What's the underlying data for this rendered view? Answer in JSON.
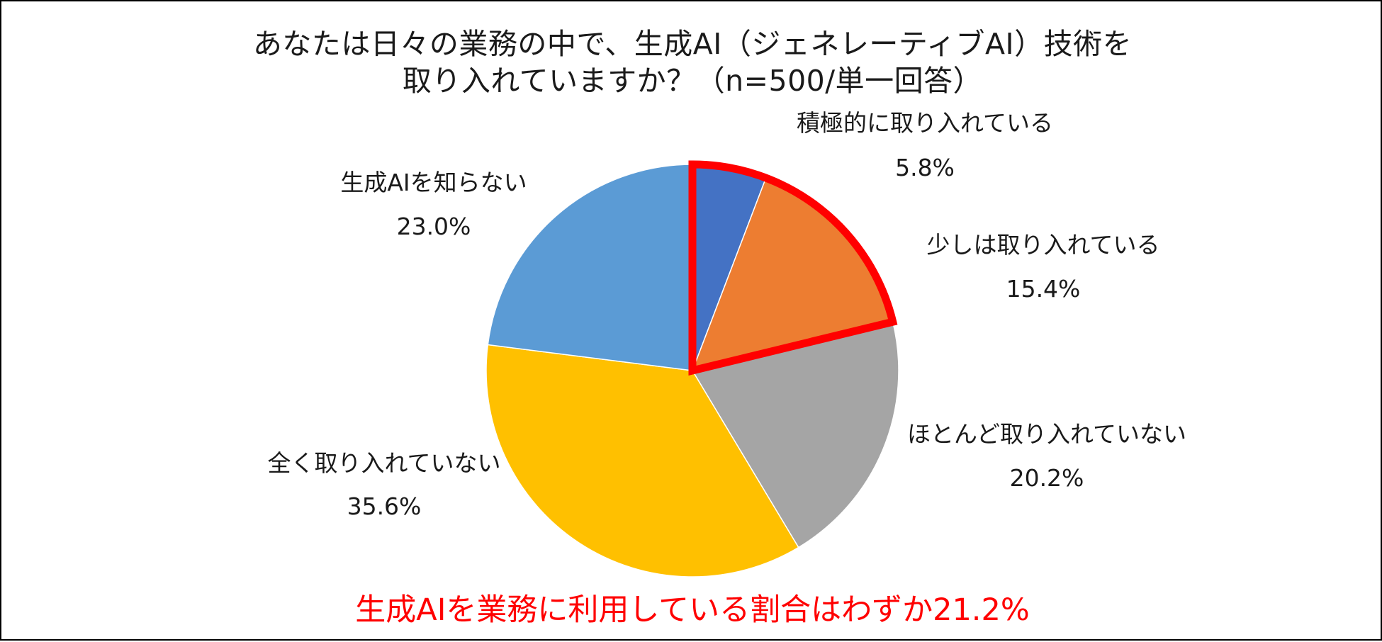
{
  "chart_data": {
    "type": "pie",
    "title_lines": [
      "あなたは日々の業務の中で、生成AI（ジェネレーティブAI）技術を",
      "取り入れていますか？（n=500/単一回答）"
    ],
    "value_format": "percent",
    "slices": [
      {
        "label": "積極的に取り入れている",
        "value": 5.8,
        "value_label": "5.8%",
        "color": "#4472C4"
      },
      {
        "label": "少しは取り入れている",
        "value": 15.4,
        "value_label": "15.4%",
        "color": "#ED7D31"
      },
      {
        "label": "ほとんど取り入れていない",
        "value": 20.2,
        "value_label": "20.2%",
        "color": "#A5A5A5"
      },
      {
        "label": "全く取り入れていない",
        "value": 35.6,
        "value_label": "35.6%",
        "color": "#FFC000"
      },
      {
        "label": "生成AIを知らない",
        "value": 23.0,
        "value_label": "23.0%",
        "color": "#5B9BD5"
      }
    ],
    "highlighted_slices": [
      0,
      1
    ],
    "highlight_color": "#FF0000",
    "start_direction": "12 o'clock, clockwise",
    "legend": "none (labels beside slices)",
    "annotation": "生成AIを業務に利用している割合はわずか21.2%",
    "annotation_color": "#FF0000"
  }
}
